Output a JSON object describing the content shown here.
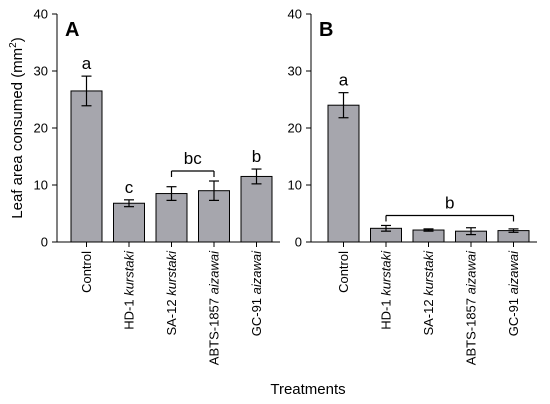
{
  "figure": {
    "ylabel_main": "Leaf area consumed (mm",
    "ylabel_sup": "2",
    "ylabel_close": ")",
    "xlabel": "Treatments"
  },
  "chart_data": [
    {
      "type": "bar",
      "panel": "A",
      "ylim": [
        0,
        40
      ],
      "yticks": [
        "0",
        "10",
        "20",
        "30",
        "40"
      ],
      "categories": [
        {
          "main": "Control",
          "italic": ""
        },
        {
          "main": "HD-1 ",
          "italic": "kurstaki"
        },
        {
          "main": "SA-12 ",
          "italic": "kurstaki"
        },
        {
          "main": "ABTS-1857 ",
          "italic": "aizawai"
        },
        {
          "main": "GC-91 ",
          "italic": "aizawai"
        }
      ],
      "values": [
        26.5,
        6.8,
        8.5,
        9.0,
        11.5
      ],
      "errors": [
        2.6,
        0.6,
        1.2,
        1.7,
        1.3
      ],
      "significance": [
        {
          "label": "a",
          "bars": [
            0
          ]
        },
        {
          "label": "c",
          "bars": [
            1
          ]
        },
        {
          "label": "bc",
          "bars": [
            2,
            3
          ]
        },
        {
          "label": "b",
          "bars": [
            4
          ]
        }
      ],
      "bar_color": "#a6a6ad"
    },
    {
      "type": "bar",
      "panel": "B",
      "ylim": [
        0,
        40
      ],
      "yticks": [
        "0",
        "10",
        "20",
        "30",
        "40"
      ],
      "categories": [
        {
          "main": "Control",
          "italic": ""
        },
        {
          "main": "HD-1 ",
          "italic": "kurstaki"
        },
        {
          "main": "SA-12 ",
          "italic": "kurstaki"
        },
        {
          "main": "ABTS-1857 ",
          "italic": "aizawai"
        },
        {
          "main": "GC-91 ",
          "italic": "aizawai"
        }
      ],
      "values": [
        24.0,
        2.4,
        2.1,
        1.9,
        2.0
      ],
      "errors": [
        2.2,
        0.5,
        0.2,
        0.6,
        0.3
      ],
      "significance": [
        {
          "label": "a",
          "bars": [
            0
          ]
        },
        {
          "label": "b",
          "bars": [
            1,
            2,
            3,
            4
          ]
        }
      ],
      "bar_color": "#a6a6ad"
    }
  ]
}
